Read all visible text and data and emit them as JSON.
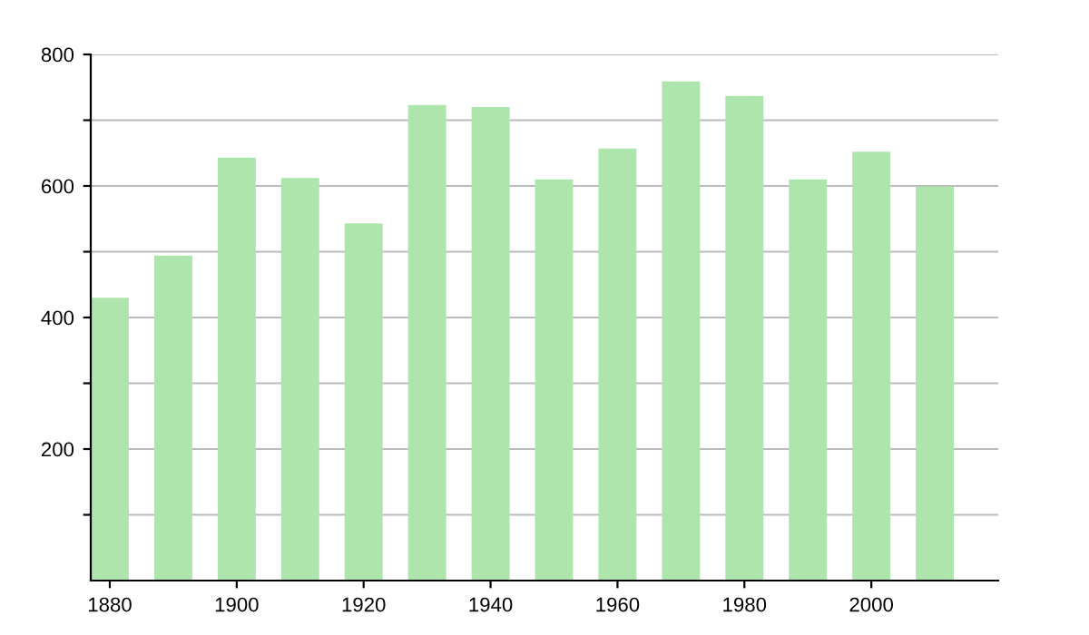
{
  "chart_data": {
    "type": "bar",
    "x": [
      1880,
      1890,
      1900,
      1910,
      1920,
      1930,
      1940,
      1950,
      1960,
      1970,
      1980,
      1990,
      2000,
      2010
    ],
    "values": [
      430,
      494,
      643,
      612,
      543,
      723,
      720,
      610,
      657,
      759,
      737,
      610,
      652,
      599
    ],
    "color": "#aee5ad",
    "xlim": [
      1877,
      2020
    ],
    "xticks": [
      1880,
      1900,
      1920,
      1940,
      1960,
      1980,
      2000
    ],
    "ylim": [
      0,
      800
    ],
    "yticks": [
      {
        "value": 100,
        "label": null
      },
      200,
      {
        "value": 300,
        "label": null
      },
      400,
      {
        "value": 500,
        "label": null
      },
      600,
      {
        "value": 700,
        "label": null
      },
      800
    ],
    "grid": "y",
    "legend": false
  }
}
